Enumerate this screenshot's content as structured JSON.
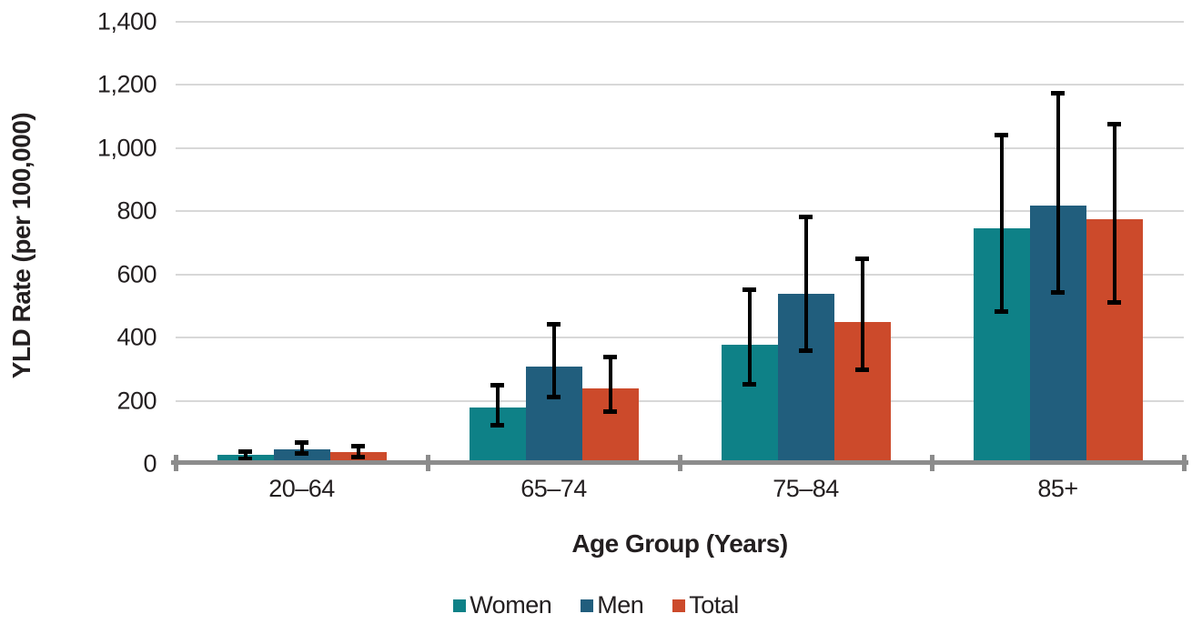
{
  "figure": {
    "y_axis_title": "YLD Rate (per 100,000)",
    "x_axis_title": "Age Group (Years)"
  },
  "chart_data": {
    "type": "bar",
    "title": "",
    "xlabel": "Age Group (Years)",
    "ylabel": "YLD Rate (per 100,000)",
    "categories": [
      "20–64",
      "65–74",
      "75–84",
      "85+"
    ],
    "series": [
      {
        "name": "Women",
        "color": "#0E8187",
        "values": [
          30,
          178,
          378,
          745
        ],
        "ci_low": [
          15,
          122,
          252,
          480
        ],
        "ci_high": [
          40,
          252,
          552,
          1042
        ]
      },
      {
        "name": "Men",
        "color": "#215E7D",
        "values": [
          47,
          308,
          538,
          818
        ],
        "ci_low": [
          32,
          210,
          357,
          542
        ],
        "ci_high": [
          70,
          445,
          783,
          1175
        ]
      },
      {
        "name": "Total",
        "color": "#CC4A2B",
        "values": [
          38,
          238,
          448,
          775
        ],
        "ci_low": [
          20,
          165,
          297,
          509
        ],
        "ci_high": [
          57,
          341,
          650,
          1078
        ]
      }
    ],
    "ylim": [
      0,
      1400
    ],
    "ytick_step": 200,
    "ytick_labels": [
      "0",
      "200",
      "400",
      "600",
      "800",
      "1,000",
      "1,200",
      "1,400"
    ],
    "grid": true,
    "error_bars": true,
    "legend_position": "bottom"
  },
  "legend": {
    "items": [
      {
        "label": "Women",
        "color": "#0E8187"
      },
      {
        "label": "Men",
        "color": "#215E7D"
      },
      {
        "label": "Total",
        "color": "#CC4A2B"
      }
    ]
  },
  "colors": {
    "gridline": "#D8D8D8",
    "axis": "#8C8C8C",
    "error_bar": "#000000",
    "text": "#231F20",
    "background": "#FFFFFF"
  }
}
